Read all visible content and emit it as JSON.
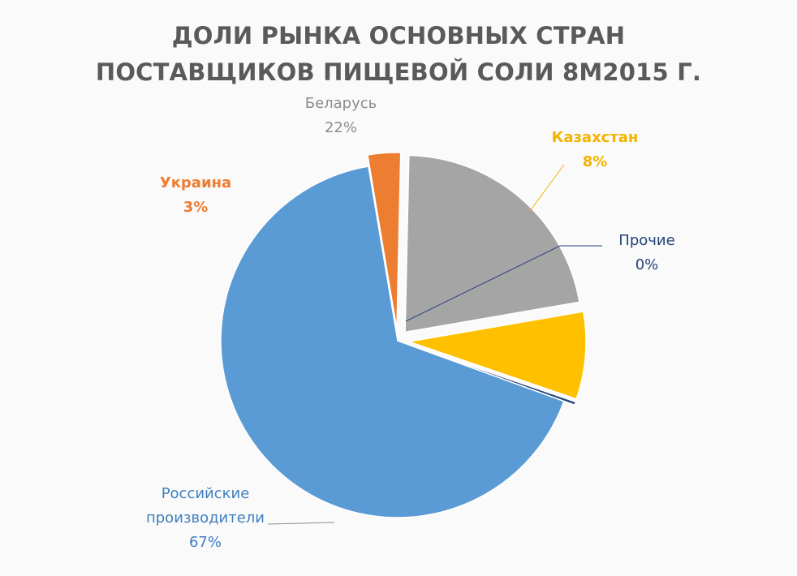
{
  "chart_data": {
    "type": "pie",
    "title_lines": [
      "ДОЛИ РЫНКА ОСНОВНЫХ СТРАН",
      "ПОСТАВЩИКОВ ПИЩЕВОЙ СОЛИ 8М2015 Г."
    ],
    "slices": [
      {
        "label": "Российские производители",
        "label_lines": [
          "Российские",
          "производители"
        ],
        "value": 67,
        "value_label": "67%",
        "color": "#5b9bd5",
        "label_color": "#3f7fc0",
        "bold": false
      },
      {
        "label": "Украина",
        "label_lines": [
          "Украина"
        ],
        "value": 3,
        "value_label": "3%",
        "color": "#ed7d31",
        "label_color": "#ed7d31",
        "bold": true
      },
      {
        "label": "Беларусь",
        "label_lines": [
          "Беларусь"
        ],
        "value": 22,
        "value_label": "22%",
        "color": "#a5a5a5",
        "label_color": "#8c8c8c",
        "bold": false
      },
      {
        "label": "Казахстан",
        "label_lines": [
          "Казахстан"
        ],
        "value": 8,
        "value_label": "8%",
        "color": "#ffc000",
        "label_color": "#f2b400",
        "bold": true
      },
      {
        "label": "Прочие",
        "label_lines": [
          "Прочие"
        ],
        "value": 0.3,
        "value_label": "0%",
        "color": "#264478",
        "label_color": "#264478",
        "bold": false
      }
    ]
  }
}
